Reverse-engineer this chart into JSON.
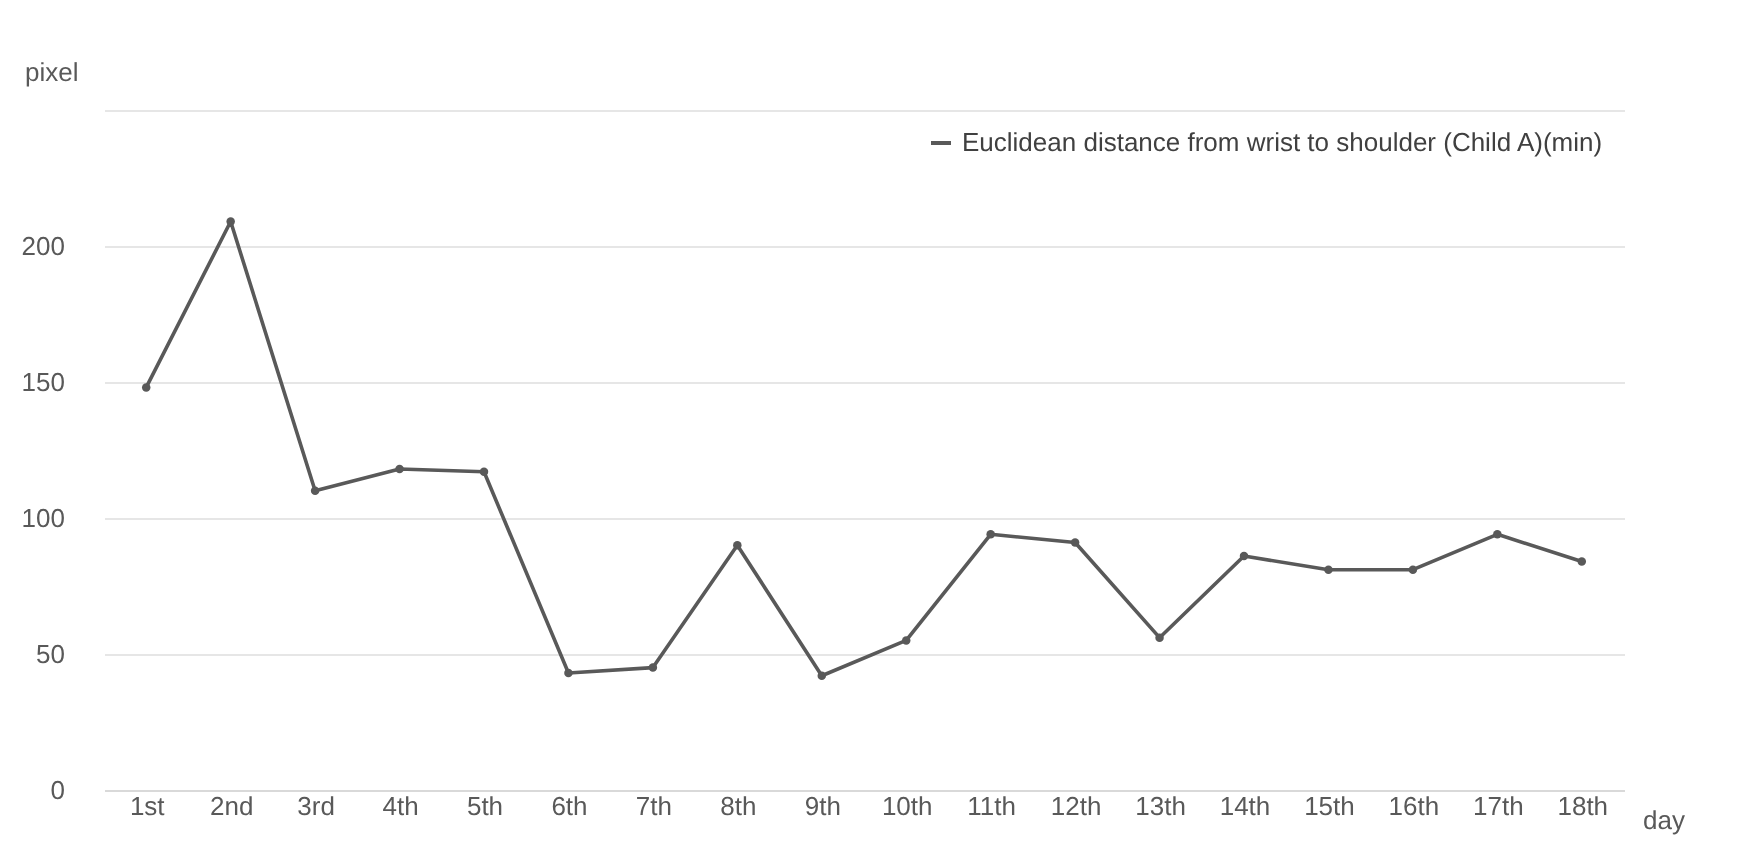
{
  "chart_data": {
    "type": "line",
    "xlabel": "day",
    "ylabel": "pixel",
    "categories": [
      "1st",
      "2nd",
      "3rd",
      "4th",
      "5th",
      "6th",
      "7th",
      "8th",
      "9th",
      "10th",
      "11th",
      "12th",
      "13th",
      "14th",
      "15th",
      "16th",
      "17th",
      "18th"
    ],
    "series": [
      {
        "name": "Euclidean distance from wrist to shoulder (Child A)(min)",
        "color": "#595959",
        "values": [
          148,
          209,
          110,
          118,
          117,
          43,
          45,
          90,
          42,
          55,
          94,
          91,
          56,
          86,
          81,
          81,
          94,
          84
        ]
      }
    ],
    "ylim": [
      0,
      250
    ],
    "yticks": [
      0,
      50,
      100,
      150,
      200,
      {
        "value": 250,
        "label": null
      }
    ],
    "grid": "y",
    "legend": "top right",
    "marker": "circle",
    "line_style": "solid"
  }
}
